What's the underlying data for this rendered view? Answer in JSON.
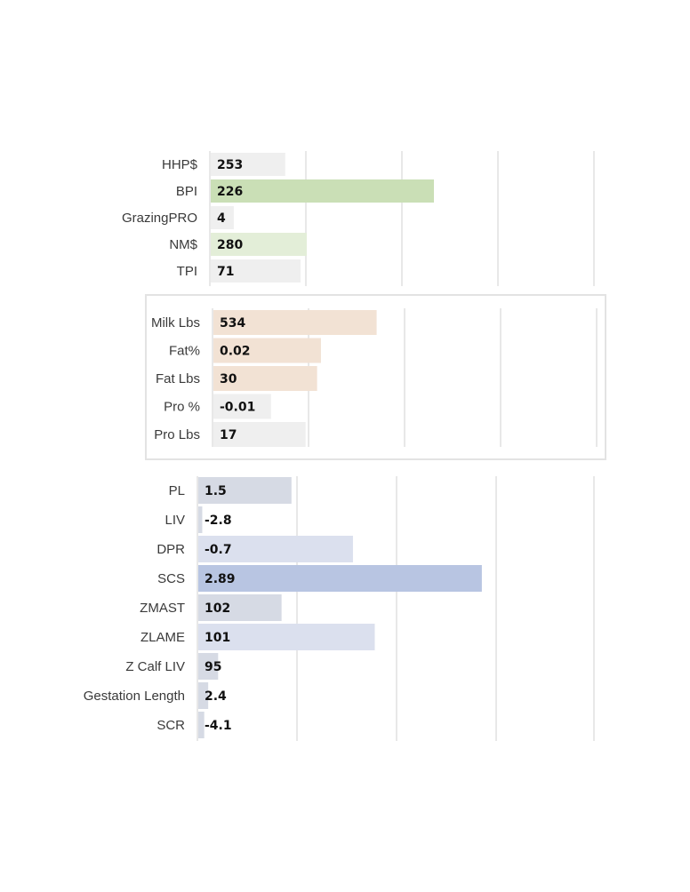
{
  "chart_data": [
    {
      "type": "bar",
      "orientation": "horizontal",
      "categories": [
        "HHP$",
        "BPI",
        "GrazingPRO",
        "NM$",
        "TPI"
      ],
      "values": [
        253,
        226,
        4,
        280,
        71
      ],
      "value_labels": [
        "253",
        "226",
        "4",
        "280",
        "71"
      ],
      "bar_levels": [
        0.194,
        0.581,
        0.06,
        0.25,
        0.234
      ],
      "colors": [
        "#efefef",
        "#cadfb6",
        "#efefef",
        "#e3eed8",
        "#efefef"
      ],
      "grid": true,
      "legend": "none"
    },
    {
      "type": "bar",
      "orientation": "horizontal",
      "categories": [
        "Milk Lbs",
        "Fat%",
        "Fat Lbs",
        "Pro %",
        "Pro Lbs"
      ],
      "values": [
        534,
        0.02,
        30,
        -0.01,
        17
      ],
      "value_labels": [
        "534",
        "0.02",
        "30",
        "-0.01",
        "17"
      ],
      "bar_levels": [
        0.425,
        0.28,
        0.27,
        0.15,
        0.24
      ],
      "colors": [
        "#f2e2d4",
        "#f2e2d4",
        "#f2e2d4",
        "#efefef",
        "#efefef"
      ],
      "boxed": true,
      "grid": true,
      "legend": "none"
    },
    {
      "type": "bar",
      "orientation": "horizontal",
      "categories": [
        "PL",
        "LIV",
        "DPR",
        "SCS",
        "ZMAST",
        "ZLAME",
        "Z Calf LIV",
        "Gestation Length",
        "SCR"
      ],
      "values": [
        1.5,
        -2.8,
        -0.7,
        2.89,
        102,
        101,
        95,
        2.4,
        -4.1
      ],
      "value_labels": [
        "1.5",
        "-2.8",
        "-0.7",
        "2.89",
        "102",
        "101",
        "95",
        "2.4",
        "-4.1"
      ],
      "bar_levels": [
        0.235,
        0.01,
        0.39,
        0.715,
        0.21,
        0.445,
        0.05,
        0.025,
        0.015
      ],
      "colors": [
        "#d6dae4",
        "#d6dae4",
        "#dbe0ee",
        "#b8c5e2",
        "#d6dae4",
        "#dbe0ee",
        "#d6dae4",
        "#d6dae4",
        "#d6dae4"
      ],
      "grid": true,
      "legend": "none"
    }
  ]
}
